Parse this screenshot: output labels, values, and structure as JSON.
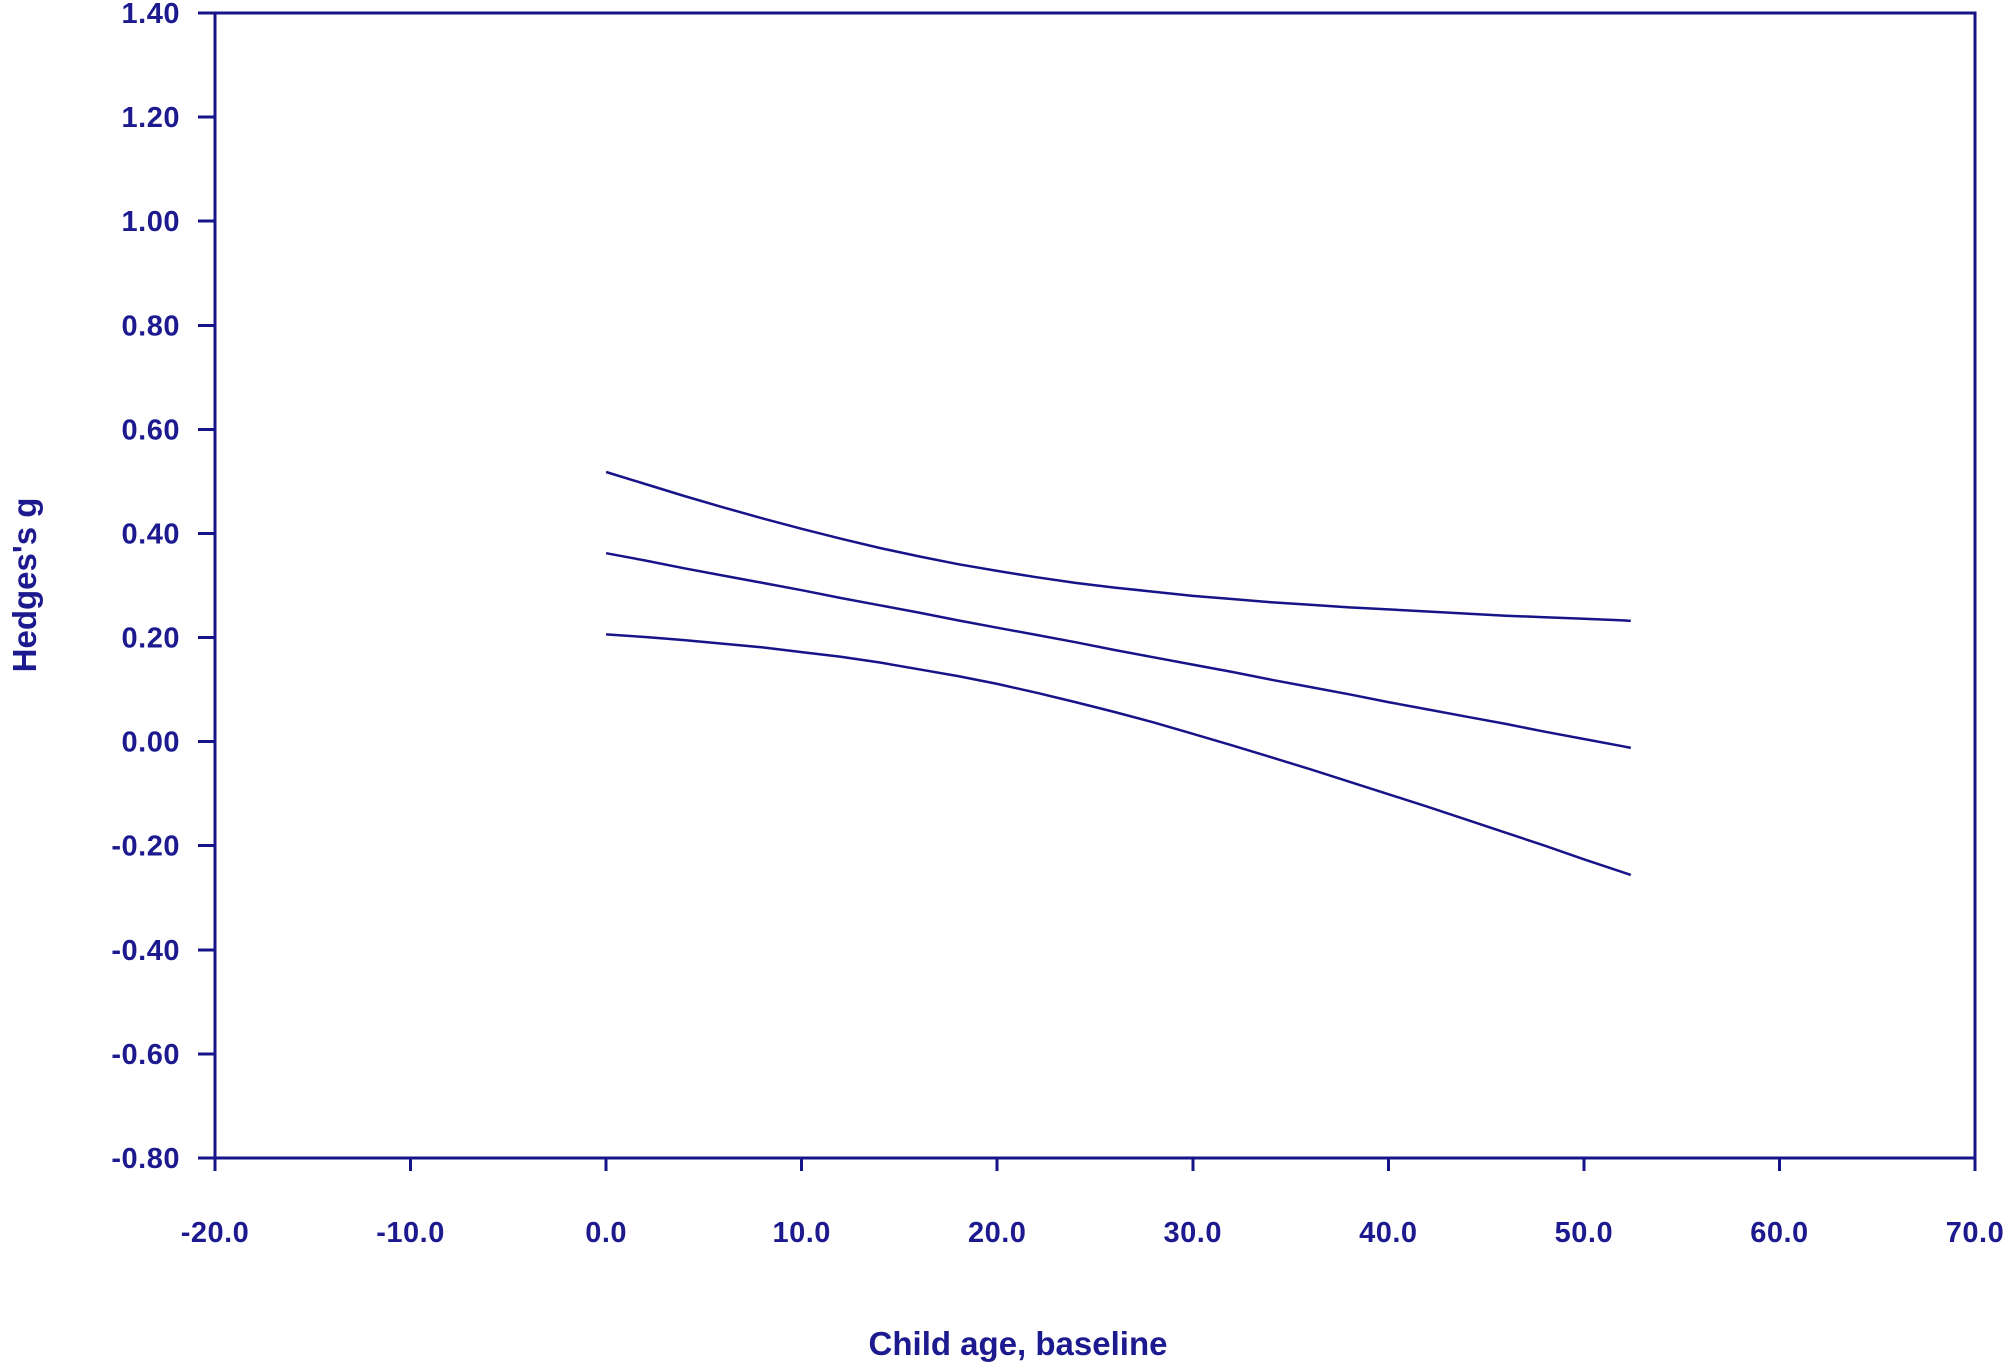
{
  "figure": {
    "background": "#ffffff",
    "accent_color": "#171489",
    "text_color": "#1c1a8e"
  },
  "chart_data": {
    "type": "line",
    "title": "",
    "xlabel": "Child age, baseline",
    "ylabel": "Hedges's g",
    "xlim": [
      -20,
      70
    ],
    "ylim": [
      -0.8,
      1.4
    ],
    "grid": false,
    "legend": "none",
    "frame": "full-box",
    "line_color": "#171489",
    "x_tick_values": [
      -20,
      -10,
      0,
      10,
      20,
      30,
      40,
      50,
      60,
      70
    ],
    "x_tick_labels": [
      "-20.0",
      "-10.0",
      "0.0",
      "10.0",
      "20.0",
      "30.0",
      "40.0",
      "50.0",
      "60.0",
      "70.0"
    ],
    "y_tick_values": [
      1.4,
      1.2,
      1.0,
      0.8,
      0.6,
      0.4,
      0.2,
      0.0,
      -0.2,
      -0.4,
      -0.6,
      -0.8
    ],
    "y_tick_labels": [
      "1.40",
      "1.20",
      "1.00",
      "0.80",
      "0.60",
      "0.40",
      "0.20",
      "0.00",
      "-0.20",
      "-0.40",
      "-0.60",
      "-0.80"
    ],
    "x": [
      0,
      2,
      4,
      6,
      8,
      10,
      12,
      14,
      16,
      18,
      20,
      22,
      24,
      26,
      28,
      30,
      32,
      34,
      36,
      38,
      40,
      42,
      44,
      46,
      48,
      50,
      52,
      52.4
    ],
    "series": [
      {
        "name": "regression-line",
        "role": "fitted meta-regression line",
        "values": [
          0.362,
          0.348,
          0.333,
          0.319,
          0.305,
          0.291,
          0.276,
          0.262,
          0.248,
          0.233,
          0.219,
          0.205,
          0.191,
          0.176,
          0.162,
          0.148,
          0.134,
          0.119,
          0.105,
          0.091,
          0.076,
          0.062,
          0.048,
          0.034,
          0.019,
          0.005,
          -0.009,
          -0.012
        ]
      },
      {
        "name": "upper-confidence-band",
        "role": "upper 95% confidence limit",
        "values": [
          0.518,
          0.495,
          0.472,
          0.45,
          0.429,
          0.409,
          0.39,
          0.372,
          0.356,
          0.341,
          0.328,
          0.316,
          0.305,
          0.296,
          0.288,
          0.28,
          0.274,
          0.268,
          0.263,
          0.258,
          0.254,
          0.25,
          0.246,
          0.242,
          0.239,
          0.236,
          0.233,
          0.232
        ]
      },
      {
        "name": "lower-confidence-band",
        "role": "lower 95% confidence limit",
        "values": [
          0.206,
          0.201,
          0.195,
          0.188,
          0.181,
          0.172,
          0.163,
          0.152,
          0.139,
          0.126,
          0.111,
          0.094,
          0.076,
          0.057,
          0.037,
          0.015,
          -0.007,
          -0.03,
          -0.053,
          -0.077,
          -0.101,
          -0.125,
          -0.15,
          -0.175,
          -0.2,
          -0.226,
          -0.251,
          -0.256
        ]
      }
    ]
  }
}
